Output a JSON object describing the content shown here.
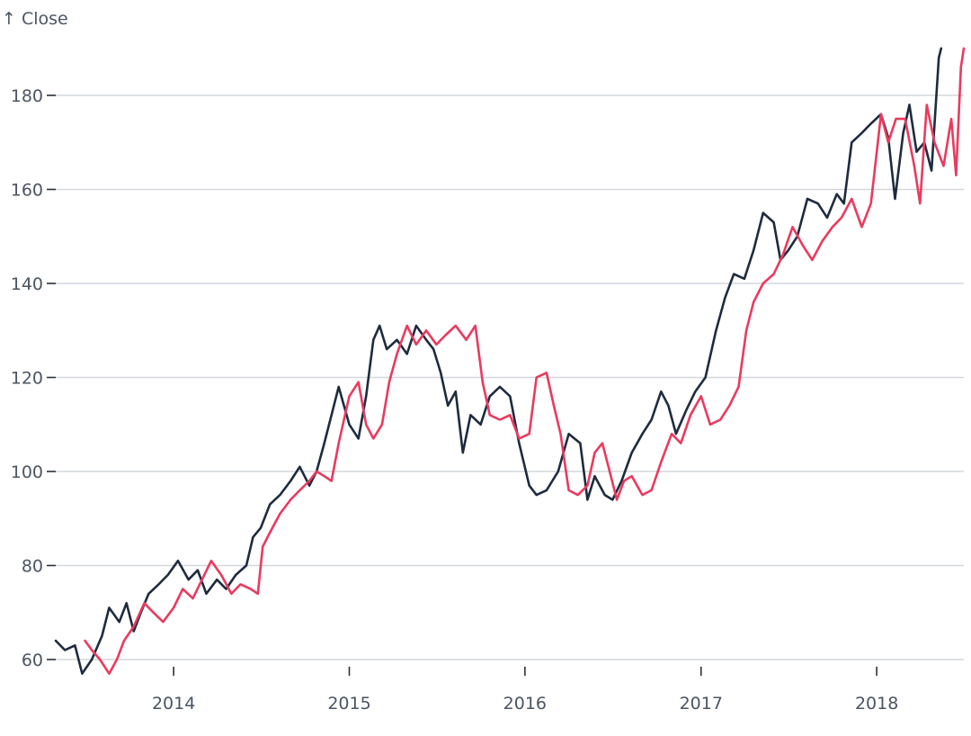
{
  "chart_data": {
    "type": "line",
    "title": "",
    "ylabel": "↑ Close",
    "xlabel": "",
    "ylim": [
      56,
      190
    ],
    "xlim": [
      "2013-05-01",
      "2018-07-01"
    ],
    "grid": "horizontal",
    "x_ticks": [
      "2014",
      "2015",
      "2016",
      "2017",
      "2018"
    ],
    "y_ticks": [
      60,
      80,
      100,
      120,
      140,
      160,
      180
    ],
    "series": [
      {
        "color": "#1e2b3f",
        "points": [
          [
            "2013-05-01",
            64
          ],
          [
            "2013-05-20",
            62
          ],
          [
            "2013-06-10",
            63
          ],
          [
            "2013-06-25",
            57
          ],
          [
            "2013-07-15",
            60
          ],
          [
            "2013-08-05",
            65
          ],
          [
            "2013-08-20",
            71
          ],
          [
            "2013-09-10",
            68
          ],
          [
            "2013-09-25",
            72
          ],
          [
            "2013-10-10",
            66
          ],
          [
            "2013-10-25",
            70
          ],
          [
            "2013-11-10",
            74
          ],
          [
            "2013-12-01",
            76
          ],
          [
            "2013-12-20",
            78
          ],
          [
            "2014-01-10",
            81
          ],
          [
            "2014-02-01",
            77
          ],
          [
            "2014-02-20",
            79
          ],
          [
            "2014-03-10",
            74
          ],
          [
            "2014-04-01",
            77
          ],
          [
            "2014-04-20",
            75
          ],
          [
            "2014-05-10",
            78
          ],
          [
            "2014-06-01",
            80
          ],
          [
            "2014-06-15",
            86
          ],
          [
            "2014-07-01",
            88
          ],
          [
            "2014-07-20",
            93
          ],
          [
            "2014-08-10",
            95
          ],
          [
            "2014-09-01",
            98
          ],
          [
            "2014-09-20",
            101
          ],
          [
            "2014-10-10",
            97
          ],
          [
            "2014-10-25",
            100
          ],
          [
            "2014-11-10",
            106
          ],
          [
            "2014-11-25",
            112
          ],
          [
            "2014-12-10",
            118
          ],
          [
            "2015-01-01",
            110
          ],
          [
            "2015-01-20",
            107
          ],
          [
            "2015-02-05",
            116
          ],
          [
            "2015-02-20",
            128
          ],
          [
            "2015-03-05",
            131
          ],
          [
            "2015-03-20",
            126
          ],
          [
            "2015-04-10",
            128
          ],
          [
            "2015-05-01",
            125
          ],
          [
            "2015-05-20",
            131
          ],
          [
            "2015-06-10",
            128
          ],
          [
            "2015-06-25",
            126
          ],
          [
            "2015-07-10",
            121
          ],
          [
            "2015-07-25",
            114
          ],
          [
            "2015-08-10",
            117
          ],
          [
            "2015-08-25",
            104
          ],
          [
            "2015-09-10",
            112
          ],
          [
            "2015-10-01",
            110
          ],
          [
            "2015-10-20",
            116
          ],
          [
            "2015-11-10",
            118
          ],
          [
            "2015-12-01",
            116
          ],
          [
            "2015-12-20",
            106
          ],
          [
            "2016-01-10",
            97
          ],
          [
            "2016-01-25",
            95
          ],
          [
            "2016-02-15",
            96
          ],
          [
            "2016-03-10",
            100
          ],
          [
            "2016-04-01",
            108
          ],
          [
            "2016-04-25",
            106
          ],
          [
            "2016-05-10",
            94
          ],
          [
            "2016-05-25",
            99
          ],
          [
            "2016-06-15",
            95
          ],
          [
            "2016-07-01",
            94
          ],
          [
            "2016-07-20",
            98
          ],
          [
            "2016-08-10",
            104
          ],
          [
            "2016-09-01",
            108
          ],
          [
            "2016-09-20",
            111
          ],
          [
            "2016-10-10",
            117
          ],
          [
            "2016-10-25",
            114
          ],
          [
            "2016-11-10",
            108
          ],
          [
            "2016-12-01",
            113
          ],
          [
            "2016-12-20",
            117
          ],
          [
            "2017-01-10",
            120
          ],
          [
            "2017-02-01",
            130
          ],
          [
            "2017-02-20",
            137
          ],
          [
            "2017-03-10",
            142
          ],
          [
            "2017-04-01",
            141
          ],
          [
            "2017-04-20",
            147
          ],
          [
            "2017-05-10",
            155
          ],
          [
            "2017-06-01",
            153
          ],
          [
            "2017-06-15",
            145
          ],
          [
            "2017-07-01",
            147
          ],
          [
            "2017-07-20",
            150
          ],
          [
            "2017-08-10",
            158
          ],
          [
            "2017-09-01",
            157
          ],
          [
            "2017-09-20",
            154
          ],
          [
            "2017-10-10",
            159
          ],
          [
            "2017-10-25",
            157
          ],
          [
            "2017-11-10",
            170
          ],
          [
            "2017-12-01",
            172
          ],
          [
            "2017-12-20",
            174
          ],
          [
            "2018-01-10",
            176
          ],
          [
            "2018-01-25",
            171
          ],
          [
            "2018-02-08",
            158
          ],
          [
            "2018-02-25",
            172
          ],
          [
            "2018-03-10",
            178
          ],
          [
            "2018-03-25",
            168
          ],
          [
            "2018-04-10",
            170
          ],
          [
            "2018-04-25",
            164
          ],
          [
            "2018-05-10",
            188
          ],
          [
            "2018-05-15",
            190
          ]
        ]
      },
      {
        "color": "#ea3a5e",
        "points": [
          [
            "2013-07-01",
            64
          ],
          [
            "2013-07-15",
            62
          ],
          [
            "2013-08-01",
            60
          ],
          [
            "2013-08-20",
            57
          ],
          [
            "2013-09-05",
            60
          ],
          [
            "2013-09-20",
            64
          ],
          [
            "2013-10-10",
            67
          ],
          [
            "2013-11-01",
            72
          ],
          [
            "2013-11-20",
            70
          ],
          [
            "2013-12-10",
            68
          ],
          [
            "2014-01-01",
            71
          ],
          [
            "2014-01-20",
            75
          ],
          [
            "2014-02-10",
            73
          ],
          [
            "2014-03-01",
            77
          ],
          [
            "2014-03-20",
            81
          ],
          [
            "2014-04-10",
            78
          ],
          [
            "2014-05-01",
            74
          ],
          [
            "2014-05-20",
            76
          ],
          [
            "2014-06-10",
            75
          ],
          [
            "2014-06-25",
            74
          ],
          [
            "2014-07-05",
            84
          ],
          [
            "2014-07-20",
            87
          ],
          [
            "2014-08-10",
            91
          ],
          [
            "2014-09-01",
            94
          ],
          [
            "2014-09-20",
            96
          ],
          [
            "2014-10-10",
            98
          ],
          [
            "2014-10-25",
            100
          ],
          [
            "2014-11-10",
            99
          ],
          [
            "2014-11-25",
            98
          ],
          [
            "2014-12-10",
            106
          ],
          [
            "2015-01-01",
            116
          ],
          [
            "2015-01-20",
            119
          ],
          [
            "2015-02-05",
            110
          ],
          [
            "2015-02-20",
            107
          ],
          [
            "2015-03-10",
            110
          ],
          [
            "2015-03-25",
            119
          ],
          [
            "2015-04-10",
            125
          ],
          [
            "2015-05-01",
            131
          ],
          [
            "2015-05-20",
            127
          ],
          [
            "2015-06-10",
            130
          ],
          [
            "2015-07-01",
            127
          ],
          [
            "2015-07-20",
            129
          ],
          [
            "2015-08-10",
            131
          ],
          [
            "2015-09-01",
            128
          ],
          [
            "2015-09-20",
            131
          ],
          [
            "2015-10-05",
            119
          ],
          [
            "2015-10-20",
            112
          ],
          [
            "2015-11-10",
            111
          ],
          [
            "2015-12-01",
            112
          ],
          [
            "2015-12-20",
            107
          ],
          [
            "2016-01-10",
            108
          ],
          [
            "2016-01-25",
            120
          ],
          [
            "2016-02-15",
            121
          ],
          [
            "2016-03-01",
            114
          ],
          [
            "2016-03-15",
            108
          ],
          [
            "2016-04-01",
            96
          ],
          [
            "2016-04-20",
            95
          ],
          [
            "2016-05-10",
            97
          ],
          [
            "2016-05-25",
            104
          ],
          [
            "2016-06-10",
            106
          ],
          [
            "2016-06-25",
            100
          ],
          [
            "2016-07-10",
            94
          ],
          [
            "2016-07-25",
            98
          ],
          [
            "2016-08-10",
            99
          ],
          [
            "2016-09-01",
            95
          ],
          [
            "2016-09-20",
            96
          ],
          [
            "2016-10-10",
            102
          ],
          [
            "2016-11-01",
            108
          ],
          [
            "2016-11-20",
            106
          ],
          [
            "2016-12-10",
            112
          ],
          [
            "2017-01-01",
            116
          ],
          [
            "2017-01-20",
            110
          ],
          [
            "2017-02-10",
            111
          ],
          [
            "2017-03-01",
            114
          ],
          [
            "2017-03-20",
            118
          ],
          [
            "2017-04-05",
            130
          ],
          [
            "2017-04-20",
            136
          ],
          [
            "2017-05-10",
            140
          ],
          [
            "2017-06-01",
            142
          ],
          [
            "2017-06-20",
            146
          ],
          [
            "2017-07-10",
            152
          ],
          [
            "2017-08-01",
            148
          ],
          [
            "2017-08-20",
            145
          ],
          [
            "2017-09-10",
            149
          ],
          [
            "2017-10-01",
            152
          ],
          [
            "2017-10-20",
            154
          ],
          [
            "2017-11-10",
            158
          ],
          [
            "2017-12-01",
            152
          ],
          [
            "2017-12-20",
            157
          ],
          [
            "2018-01-10",
            176
          ],
          [
            "2018-01-25",
            170
          ],
          [
            "2018-02-10",
            175
          ],
          [
            "2018-03-01",
            175
          ],
          [
            "2018-03-20",
            165
          ],
          [
            "2018-04-01",
            157
          ],
          [
            "2018-04-15",
            178
          ],
          [
            "2018-05-01",
            170
          ],
          [
            "2018-05-20",
            165
          ],
          [
            "2018-06-05",
            175
          ],
          [
            "2018-06-15",
            163
          ],
          [
            "2018-06-25",
            186
          ],
          [
            "2018-07-01",
            190
          ]
        ]
      }
    ]
  }
}
